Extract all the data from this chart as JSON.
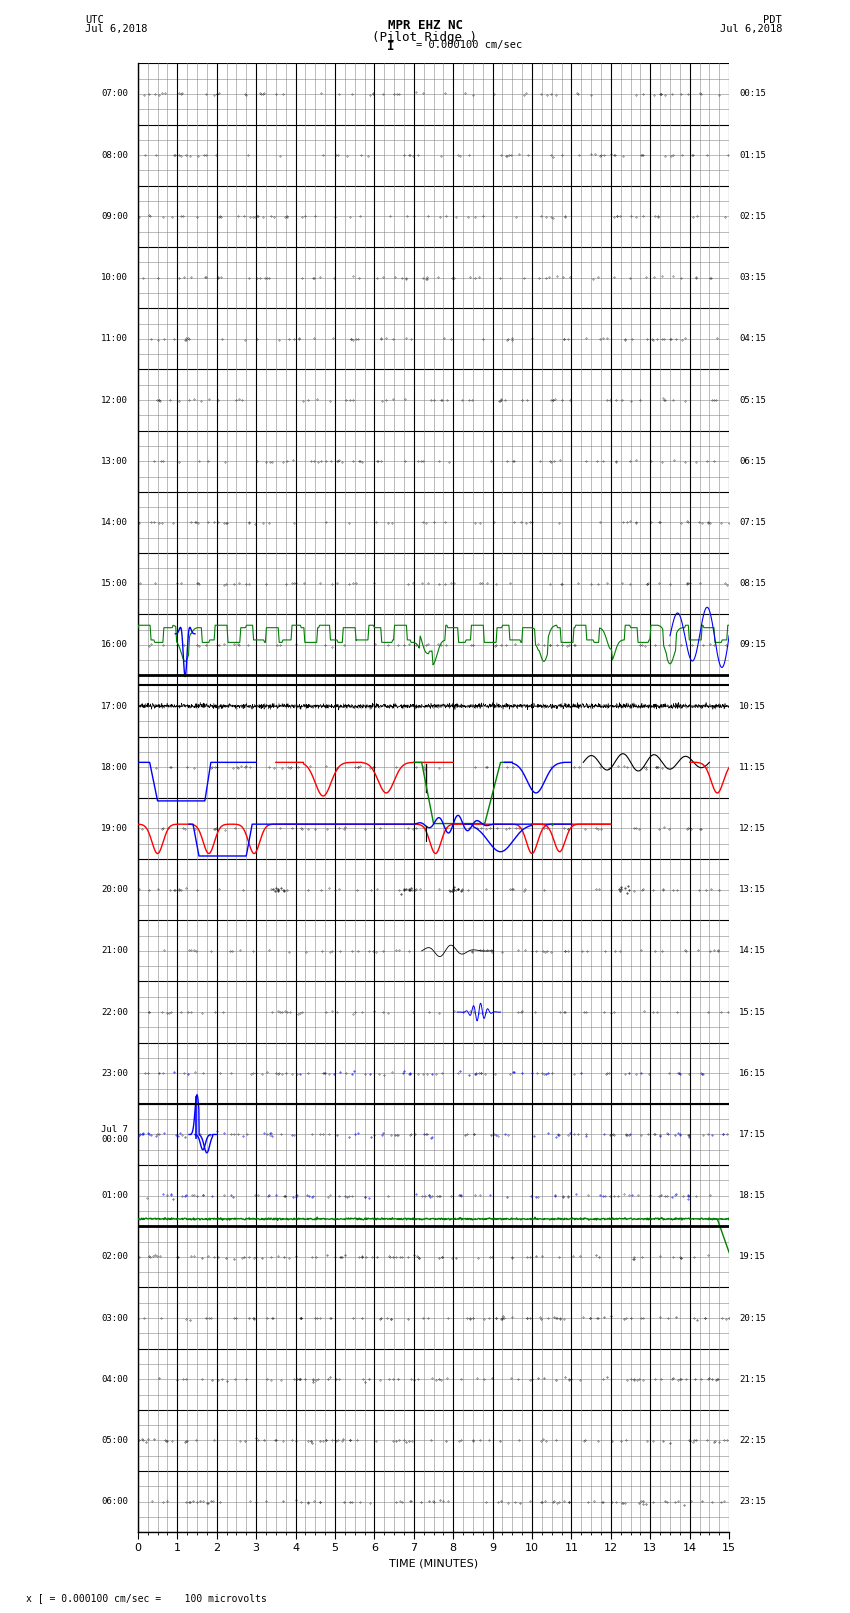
{
  "title_line1": "MPR EHZ NC",
  "title_line2": "(Pilot Ridge )",
  "title_line3": "I = 0.000100 cm/sec",
  "label_left_top": "UTC",
  "label_left_date": "Jul 6,2018",
  "label_right_top": "PDT",
  "label_right_date": "Jul 6,2018",
  "xlabel": "TIME (MINUTES)",
  "footnote": "x [ = 0.000100 cm/sec =    100 microvolts",
  "background_color": "#ffffff",
  "grid_major_color": "#000000",
  "grid_minor_color": "#888888",
  "xlim": [
    0,
    15
  ],
  "xticks": [
    0,
    1,
    2,
    3,
    4,
    5,
    6,
    7,
    8,
    9,
    10,
    11,
    12,
    13,
    14,
    15
  ],
  "num_rows": 24,
  "row_hours_utc": [
    "07:00",
    "08:00",
    "09:00",
    "10:00",
    "11:00",
    "12:00",
    "13:00",
    "14:00",
    "15:00",
    "16:00",
    "17:00",
    "18:00",
    "19:00",
    "20:00",
    "21:00",
    "22:00",
    "23:00",
    "Jul 7\n00:00",
    "01:00",
    "02:00",
    "03:00",
    "04:00",
    "05:00",
    "06:00"
  ],
  "row_hours_pdt": [
    "00:15",
    "01:15",
    "02:15",
    "03:15",
    "04:15",
    "05:15",
    "06:15",
    "07:15",
    "08:15",
    "09:15",
    "10:15",
    "11:15",
    "12:15",
    "13:15",
    "14:15",
    "15:15",
    "16:15",
    "17:15",
    "18:15",
    "19:15",
    "20:15",
    "21:15",
    "22:15",
    "23:15"
  ]
}
